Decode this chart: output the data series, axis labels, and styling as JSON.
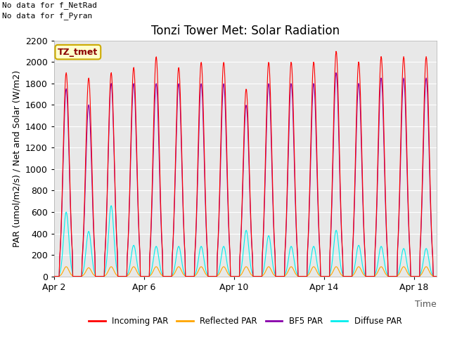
{
  "title": "Tonzi Tower Met: Solar Radiation",
  "ylabel": "PAR (umol/m2/s) / Net and Solar (W/m2)",
  "xlabel": "Time",
  "annotation_line1": "No data for f_NetRad",
  "annotation_line2": "No data for f_Pyran",
  "legend_label": "TZ_tmet",
  "legend_entries": [
    "Incoming PAR",
    "Reflected PAR",
    "BF5 PAR",
    "Diffuse PAR"
  ],
  "legend_colors": [
    "#ff0000",
    "#ffa500",
    "#8800aa",
    "#00eeee"
  ],
  "ylim": [
    0,
    2200
  ],
  "yticks": [
    0,
    200,
    400,
    600,
    800,
    1000,
    1200,
    1400,
    1600,
    1800,
    2000,
    2200
  ],
  "xtick_labels": [
    "Apr 2",
    "Apr 6",
    "Apr 10",
    "Apr 14",
    "Apr 18"
  ],
  "xtick_positions": [
    1,
    5,
    9,
    13,
    17
  ],
  "n_days": 18,
  "plot_background": "#e8e8e8",
  "grid_color": "#ffffff",
  "title_fontsize": 12,
  "label_fontsize": 9,
  "tick_fontsize": 9
}
